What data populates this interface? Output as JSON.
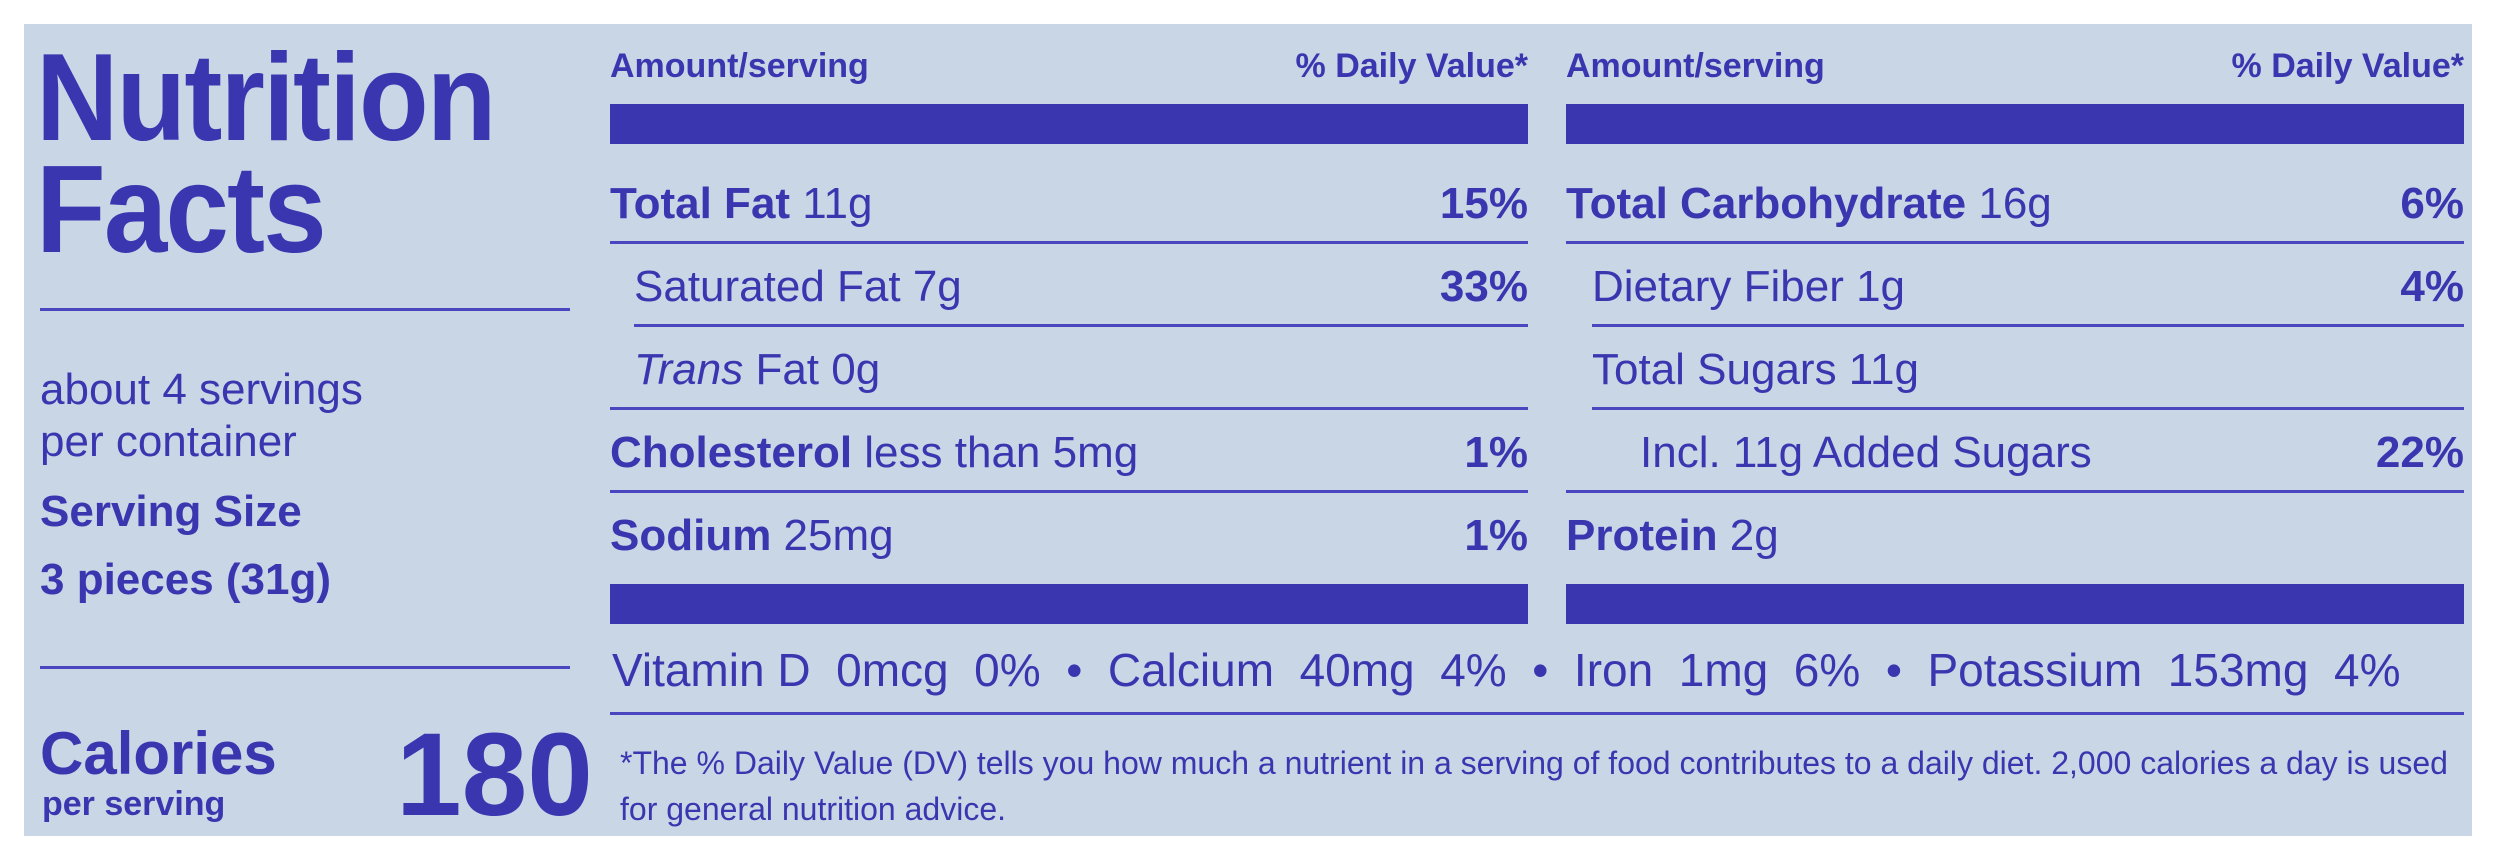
{
  "title_line1": "Nutrition",
  "title_line2": "Facts",
  "servings_line1": "about 4 servings",
  "servings_line2": "per container",
  "serving_size_label": "Serving Size",
  "serving_size_value": "3 pieces (31g)",
  "calories_label": "Calories",
  "calories_sub": "per serving",
  "calories_value": "180",
  "header_amount": "Amount/serving",
  "header_dv": "% Daily Value*",
  "left_rows": [
    {
      "bold": "Total Fat",
      "rest": " 11g",
      "pct": "15%"
    },
    {
      "bold": "",
      "rest": "Saturated Fat 7g",
      "pct": "33%"
    },
    {
      "italic": "Trans",
      "rest": " Fat 0g",
      "pct": ""
    },
    {
      "bold": "Cholesterol",
      "rest": " less than 5mg",
      "pct": "1%"
    },
    {
      "bold": "Sodium",
      "rest": " 25mg",
      "pct": "1%"
    }
  ],
  "right_rows": [
    {
      "bold": "Total Carbohydrate",
      "rest": " 16g",
      "pct": "6%"
    },
    {
      "bold": "",
      "rest": "Dietary Fiber 1g",
      "pct": "4%"
    },
    {
      "bold": "",
      "rest": "Total Sugars 11g",
      "pct": ""
    },
    {
      "bold": "",
      "rest": "Incl. 11g Added Sugars",
      "pct": "22%"
    },
    {
      "bold": "Protein",
      "rest": " 2g",
      "pct": ""
    }
  ],
  "vitamins": "Vitamin D  0mcg  0%  •  Calcium  40mg  4%  •  Iron  1mg  6%  •  Potassium  153mg  4%",
  "footnote": "*The % Daily Value (DV) tells you how much a nutrient in a serving of food contributes to a daily diet. 2,000 calories a day is used for general nutrition advice."
}
